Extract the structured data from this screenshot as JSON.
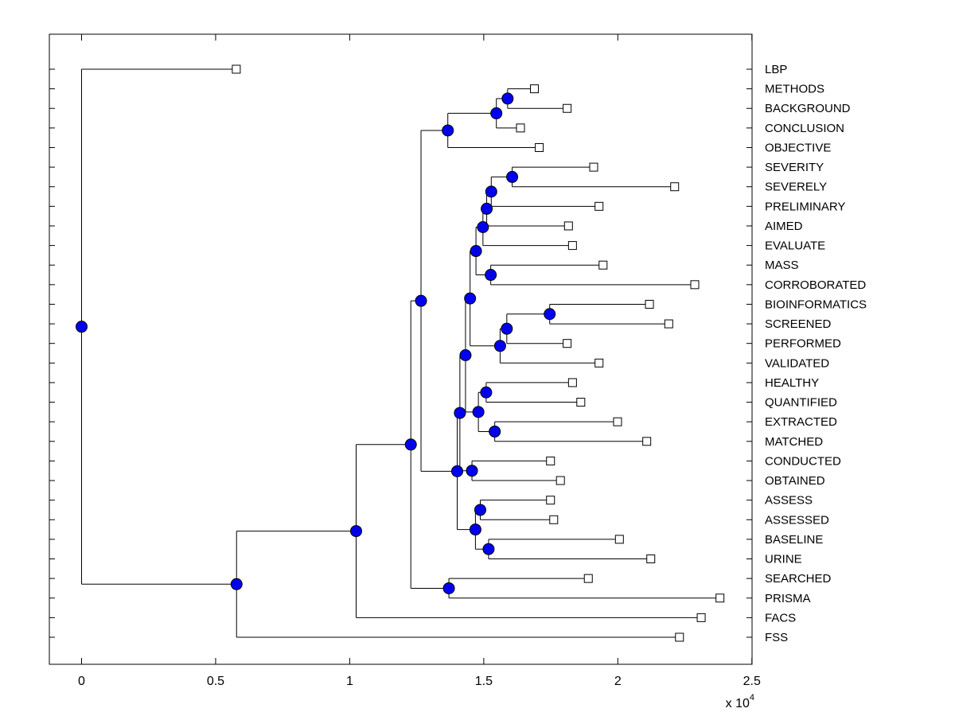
{
  "style": {
    "background": "#ffffff",
    "line_color": "#000000",
    "node_dot_color": "#0000f0",
    "node_dot_edge": "#000000",
    "leaf_marker_fill": "#ffffff",
    "leaf_marker_edge": "#000000"
  },
  "chart_data": {
    "type": "dendrogram",
    "title": "",
    "orientation": "horizontal, root at left (distance 0), leaves to the right, labels on right margin",
    "x_axis": {
      "tick_labels": [
        "0",
        "0.5",
        "1",
        "1.5",
        "2",
        "2.5"
      ],
      "tick_values": [
        0,
        0.5,
        1,
        1.5,
        2,
        2.5
      ],
      "scale_label": "x 10",
      "scale_exponent": "4",
      "range": [
        -0.12,
        2.5
      ],
      "grid": "off"
    },
    "leaves": [
      {
        "label": "LBP",
        "distance": 0.577
      },
      {
        "label": "METHODS",
        "distance": 1.689
      },
      {
        "label": "BACKGROUND",
        "distance": 1.811
      },
      {
        "label": "CONCLUSION",
        "distance": 1.637
      },
      {
        "label": "OBJECTIVE",
        "distance": 1.707
      },
      {
        "label": "SEVERITY",
        "distance": 1.91
      },
      {
        "label": "SEVERELY",
        "distance": 2.212
      },
      {
        "label": "PRELIMINARY",
        "distance": 1.93
      },
      {
        "label": "AIMED",
        "distance": 1.816
      },
      {
        "label": "EVALUATE",
        "distance": 1.831
      },
      {
        "label": "MASS",
        "distance": 1.945
      },
      {
        "label": "CORROBORATED",
        "distance": 2.287
      },
      {
        "label": "BIOINFORMATICS",
        "distance": 2.118
      },
      {
        "label": "SCREENED",
        "distance": 2.19
      },
      {
        "label": "PERFORMED",
        "distance": 1.811
      },
      {
        "label": "VALIDATED",
        "distance": 1.93
      },
      {
        "label": "HEALTHY",
        "distance": 1.831
      },
      {
        "label": "QUANTIFIED",
        "distance": 1.862
      },
      {
        "label": "EXTRACTED",
        "distance": 1.999
      },
      {
        "label": "MATCHED",
        "distance": 2.108
      },
      {
        "label": "CONDUCTED",
        "distance": 1.749
      },
      {
        "label": "OBTAINED",
        "distance": 1.786
      },
      {
        "label": "ASSESS",
        "distance": 1.749
      },
      {
        "label": "ASSESSED",
        "distance": 1.761
      },
      {
        "label": "BASELINE",
        "distance": 2.006
      },
      {
        "label": "URINE",
        "distance": 2.123
      },
      {
        "label": "SEARCHED",
        "distance": 1.89
      },
      {
        "label": "PRISMA",
        "distance": 2.381
      },
      {
        "label": "FACS",
        "distance": 2.311
      },
      {
        "label": "FSS",
        "distance": 2.23
      }
    ],
    "clusters": [
      {
        "id": "c-methods-background",
        "distance": 1.589,
        "children": [
          "METHODS",
          "BACKGROUND"
        ]
      },
      {
        "id": "c-conclusion",
        "distance": 1.547,
        "children": [
          "c-methods-background",
          "CONCLUSION"
        ]
      },
      {
        "id": "c-objective",
        "distance": 1.366,
        "children": [
          "c-conclusion",
          "OBJECTIVE"
        ]
      },
      {
        "id": "c-severity-severely",
        "distance": 1.606,
        "children": [
          "SEVERITY",
          "SEVERELY"
        ]
      },
      {
        "id": "c-preliminary",
        "distance": 1.528,
        "children": [
          "c-severity-severely",
          "PRELIMINARY"
        ]
      },
      {
        "id": "c-aimed",
        "distance": 1.511,
        "children": [
          "c-preliminary",
          "AIMED"
        ]
      },
      {
        "id": "c-evaluate",
        "distance": 1.497,
        "children": [
          "c-aimed",
          "EVALUATE"
        ]
      },
      {
        "id": "c-mass-corroborated",
        "distance": 1.526,
        "children": [
          "MASS",
          "CORROBORATED"
        ]
      },
      {
        "id": "c-severity-mass",
        "distance": 1.471,
        "children": [
          "c-evaluate",
          "c-mass-corroborated"
        ]
      },
      {
        "id": "c-bioinformatics-screened",
        "distance": 1.746,
        "children": [
          "BIOINFORMATICS",
          "SCREENED"
        ]
      },
      {
        "id": "c-performed",
        "distance": 1.586,
        "children": [
          "c-bioinformatics-screened",
          "PERFORMED"
        ]
      },
      {
        "id": "c-validated",
        "distance": 1.561,
        "children": [
          "c-performed",
          "VALIDATED"
        ]
      },
      {
        "id": "c-sev-bio",
        "distance": 1.449,
        "children": [
          "c-severity-mass",
          "c-validated"
        ]
      },
      {
        "id": "c-healthy-quantified",
        "distance": 1.509,
        "children": [
          "HEALTHY",
          "QUANTIFIED"
        ]
      },
      {
        "id": "c-extracted-matched",
        "distance": 1.541,
        "children": [
          "EXTRACTED",
          "MATCHED"
        ]
      },
      {
        "id": "c-healthy-extracted",
        "distance": 1.48,
        "children": [
          "c-healthy-quantified",
          "c-extracted-matched"
        ]
      },
      {
        "id": "c-mid-upper",
        "distance": 1.432,
        "children": [
          "c-sev-bio",
          "c-healthy-extracted"
        ]
      },
      {
        "id": "c-conducted-obtained",
        "distance": 1.456,
        "children": [
          "CONDUCTED",
          "OBTAINED"
        ]
      },
      {
        "id": "c-mid",
        "distance": 1.411,
        "children": [
          "c-mid-upper",
          "c-conducted-obtained"
        ]
      },
      {
        "id": "c-assess-assessed",
        "distance": 1.487,
        "children": [
          "ASSESS",
          "ASSESSED"
        ]
      },
      {
        "id": "c-baseline-urine",
        "distance": 1.518,
        "children": [
          "BASELINE",
          "URINE"
        ]
      },
      {
        "id": "c-assess-baseline",
        "distance": 1.469,
        "children": [
          "c-assess-assessed",
          "c-baseline-urine"
        ]
      },
      {
        "id": "c-mid-lower",
        "distance": 1.401,
        "children": [
          "c-mid",
          "c-assess-baseline"
        ]
      },
      {
        "id": "c-methods-mid",
        "distance": 1.266,
        "children": [
          "c-objective",
          "c-mid-lower"
        ]
      },
      {
        "id": "c-searched-prisma",
        "distance": 1.37,
        "children": [
          "SEARCHED",
          "PRISMA"
        ]
      },
      {
        "id": "c-main",
        "distance": 1.228,
        "children": [
          "c-methods-mid",
          "c-searched-prisma"
        ]
      },
      {
        "id": "c-main-facs",
        "distance": 1.024,
        "children": [
          "c-main",
          "FACS"
        ]
      },
      {
        "id": "c-main-fss",
        "distance": 0.578,
        "children": [
          "c-main-facs",
          "FSS"
        ]
      },
      {
        "id": "root",
        "distance": 0.0,
        "children": [
          "LBP",
          "c-main-fss"
        ]
      }
    ],
    "root": "root"
  }
}
